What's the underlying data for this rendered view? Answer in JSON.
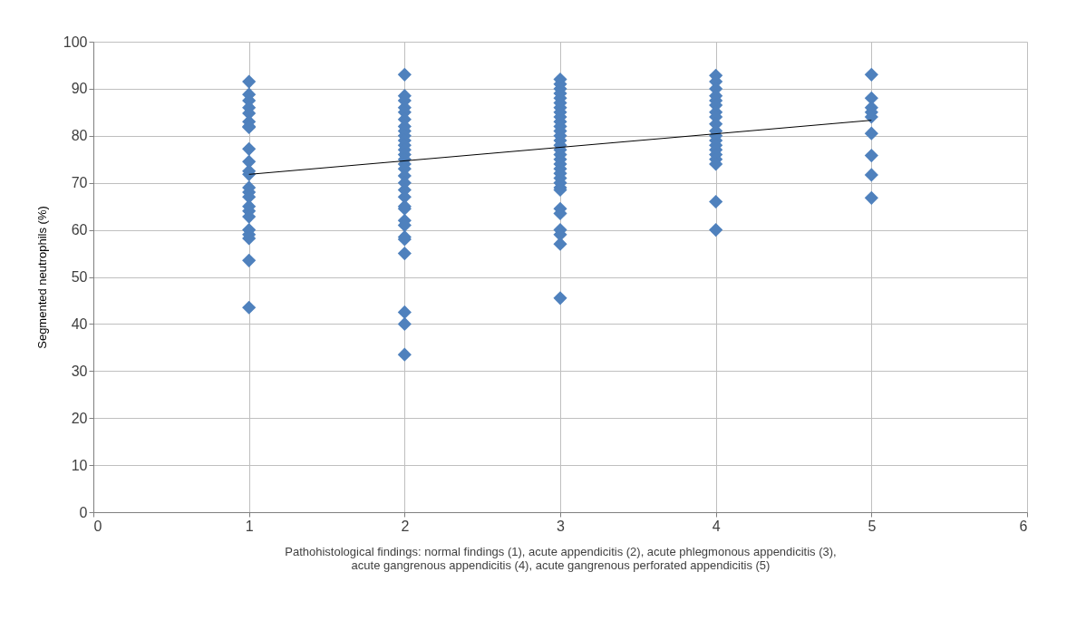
{
  "chart_data": {
    "type": "scatter",
    "xlabel": "Pathohistological findings: normal findings (1), acute appendicitis (2), acute phlegmonous appendicitis (3), acute gangrenous appendicitis (4), acute gangrenous perforated appendicitis (5)",
    "ylabel": "Segmented neutrophils (%)",
    "xlim": [
      0,
      6
    ],
    "xticks": [
      0,
      1,
      2,
      3,
      4,
      5,
      6
    ],
    "ylim": [
      0,
      100
    ],
    "yticks": [
      0,
      10,
      20,
      30,
      40,
      50,
      60,
      70,
      80,
      90,
      100
    ],
    "grid": true,
    "marker": "diamond",
    "series": [
      {
        "color": "#4f81bd",
        "x": [
          1,
          1,
          1,
          1,
          1,
          1,
          1,
          1,
          1,
          1,
          1,
          1,
          1,
          1,
          1,
          1,
          1,
          1,
          1,
          1,
          1,
          1,
          1,
          2,
          2,
          2,
          2,
          2,
          2,
          2,
          2,
          2,
          2,
          2,
          2,
          2,
          2,
          2,
          2,
          2,
          2,
          2,
          2,
          2,
          2,
          2,
          2,
          2,
          2,
          2,
          2,
          2,
          2,
          3,
          3,
          3,
          3,
          3,
          3,
          3,
          3,
          3,
          3,
          3,
          3,
          3,
          3,
          3,
          3,
          3,
          3,
          3,
          3,
          3,
          3,
          3,
          3,
          3,
          3,
          3,
          3,
          3,
          3,
          3,
          4,
          4,
          4,
          4,
          4,
          4,
          4,
          4,
          4,
          4,
          4,
          4,
          4,
          4,
          4,
          4,
          4,
          4,
          4,
          5,
          5,
          5,
          5,
          5,
          5,
          5,
          5,
          5
        ],
        "values": [
          91.5,
          88.8,
          87.5,
          86,
          84.8,
          83,
          82,
          81.8,
          77.2,
          74.5,
          72.5,
          71.8,
          69,
          68,
          67,
          65,
          64,
          62.8,
          60,
          59,
          58.2,
          53.5,
          43.5,
          93,
          88.5,
          87.5,
          86,
          85,
          83.5,
          82,
          81,
          80,
          79,
          78,
          77,
          76,
          75,
          74,
          73,
          71.5,
          70,
          68.5,
          67,
          65,
          64.5,
          62,
          61,
          58.5,
          58,
          55,
          42.5,
          40,
          33.5,
          92,
          91,
          90,
          89,
          88,
          87,
          86,
          85,
          84,
          83,
          82,
          81,
          80,
          79,
          78,
          77,
          76,
          75,
          74,
          73,
          72,
          71,
          70,
          69,
          68.5,
          64.5,
          63.5,
          60,
          59,
          57,
          45.5,
          92.8,
          91.5,
          90,
          88.5,
          87.5,
          86.5,
          85,
          84,
          82.5,
          81,
          80,
          79,
          78,
          77,
          76,
          75,
          74,
          66,
          60,
          93,
          88,
          86,
          85,
          84,
          80.5,
          75.8,
          71.7,
          66.8
        ]
      },
      {
        "type": "line",
        "color": "#000000",
        "marker": "none",
        "x": [
          1,
          5
        ],
        "values": [
          71.8,
          83.3
        ]
      }
    ]
  }
}
